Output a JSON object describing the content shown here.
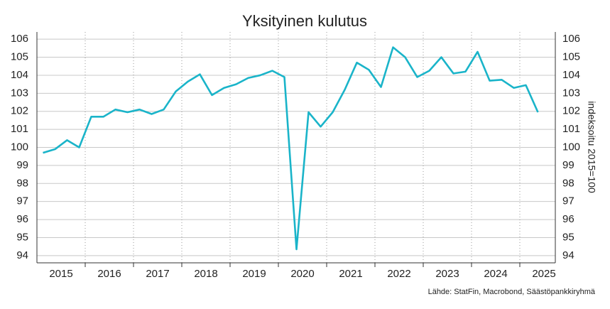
{
  "chart_data": {
    "type": "line",
    "title": "Yksityinen kulutus",
    "y2_label": "indeksoitu 2015=100",
    "source": "Lähde: StatFin, Macrobond, Säästöpankkiryhmä",
    "categories": [
      null,
      null,
      null,
      null,
      null,
      null,
      null,
      null,
      null,
      null,
      null,
      null,
      null,
      null,
      null,
      null,
      null,
      null,
      null,
      null,
      null,
      null,
      null,
      null,
      null,
      null,
      null,
      null,
      null,
      null,
      null,
      null,
      null,
      null,
      null,
      null,
      null,
      null,
      null,
      null,
      null,
      null
    ],
    "year_labels": [
      "2015",
      "2016",
      "2017",
      "2018",
      "2019",
      "2020",
      "2021",
      "2022",
      "2023",
      "2024",
      "2025"
    ],
    "series": [
      {
        "name": "Yksityinen kulutus",
        "color": "#1ab4c9",
        "values": [
          99.7,
          99.9,
          100.4,
          100.0,
          101.7,
          101.7,
          102.1,
          101.95,
          102.1,
          101.85,
          102.1,
          103.1,
          103.65,
          104.05,
          102.9,
          103.3,
          103.5,
          103.85,
          104.0,
          104.25,
          103.9,
          94.35,
          101.95,
          101.15,
          101.95,
          103.2,
          104.7,
          104.3,
          103.35,
          105.55,
          105.0,
          103.9,
          104.25,
          105.0,
          104.1,
          104.2,
          105.3,
          103.7,
          103.75,
          103.3,
          103.45,
          101.95
        ]
      }
    ],
    "ylim": [
      93.6,
      106.4
    ],
    "yticks": [
      94,
      95,
      96,
      97,
      98,
      99,
      100,
      101,
      102,
      103,
      104,
      105,
      106
    ],
    "y2lim": [
      93.6,
      106.4
    ],
    "y2ticks": [
      94,
      95,
      96,
      97,
      98,
      99,
      100,
      101,
      102,
      103,
      104,
      105,
      106
    ],
    "grid": true
  }
}
